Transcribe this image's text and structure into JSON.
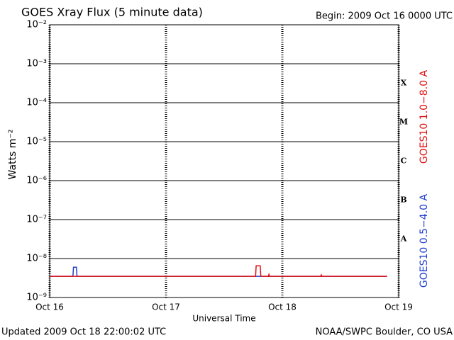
{
  "chart_data": {
    "type": "line",
    "log_y": true,
    "title": "GOES Xray Flux (5 minute data)",
    "begin_label": "Begin:  2009 Oct 16 0000 UTC",
    "ylabel": "Watts m⁻²",
    "xlabel": "Universal Time",
    "updated_label": "Updated 2009 Oct 18 22:00:02 UTC",
    "source_label": "NOAA/SWPC Boulder, CO USA",
    "flare_classes": [
      "A",
      "B",
      "C",
      "M",
      "X"
    ],
    "xlim": [
      16,
      19
    ],
    "xticks": [
      {
        "value": 16,
        "label": "Oct 16"
      },
      {
        "value": 17,
        "label": "Oct 17"
      },
      {
        "value": 18,
        "label": "Oct 18"
      },
      {
        "value": 19,
        "label": "Oct 19"
      }
    ],
    "ylim": [
      1e-09,
      0.01
    ],
    "yticks": [
      {
        "value": 1e-09,
        "label": "10⁻⁹"
      },
      {
        "value": 1e-08,
        "label": "10⁻⁸"
      },
      {
        "value": 1e-07,
        "label": "10⁻⁷"
      },
      {
        "value": 1e-06,
        "label": "10⁻⁶"
      },
      {
        "value": 1e-05,
        "label": "10⁻⁵"
      },
      {
        "value": 0.0001,
        "label": "10⁻⁴"
      },
      {
        "value": 0.001,
        "label": "10⁻³"
      },
      {
        "value": 0.01,
        "label": "10⁻²"
      }
    ],
    "grid": true,
    "x": [
      16.0,
      16.2,
      16.205,
      16.21,
      16.23,
      16.235,
      16.24,
      17.77,
      17.775,
      17.78,
      17.81,
      17.815,
      17.82,
      17.88,
      17.885,
      17.89,
      18.33,
      18.335,
      18.34,
      18.9
    ],
    "series": [
      {
        "name": "GOES10 0.5−4.0 A",
        "color": "#1f3fd0",
        "values": [
          3.5e-09,
          3.5e-09,
          6e-09,
          6e-09,
          6e-09,
          3.5e-09,
          3.5e-09,
          3.5e-09,
          3.5e-09,
          3.5e-09,
          3.5e-09,
          3.5e-09,
          3.5e-09,
          3.5e-09,
          3.5e-09,
          3.5e-09,
          3.5e-09,
          3.5e-09,
          3.5e-09,
          3.5e-09
        ]
      },
      {
        "name": "GOES10 1.0−8.0 A",
        "color": "#e01010",
        "values": [
          3.5e-09,
          3.5e-09,
          3.5e-09,
          3.5e-09,
          3.5e-09,
          3.5e-09,
          3.5e-09,
          3.5e-09,
          6.5e-09,
          6.5e-09,
          6.5e-09,
          3.6e-09,
          3.5e-09,
          3.5e-09,
          3.9e-09,
          3.5e-09,
          3.5e-09,
          3.8e-09,
          3.5e-09,
          3.5e-09
        ]
      }
    ]
  }
}
